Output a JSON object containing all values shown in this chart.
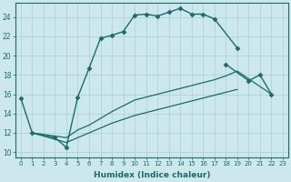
{
  "xlabel": "Humidex (Indice chaleur)",
  "bg_color": "#cde8ec",
  "grid_color": "#aacdd4",
  "line_color": "#1a6b6b",
  "xlim": [
    -0.5,
    23.5
  ],
  "ylim": [
    9.5,
    25.5
  ],
  "xticks": [
    0,
    1,
    2,
    3,
    4,
    5,
    6,
    7,
    8,
    9,
    10,
    11,
    12,
    13,
    14,
    15,
    16,
    17,
    18,
    19,
    20,
    21,
    22,
    23
  ],
  "yticks": [
    10,
    12,
    14,
    16,
    18,
    20,
    22,
    24
  ],
  "series": [
    {
      "x": [
        0,
        1,
        3,
        4,
        5,
        6,
        7,
        8,
        9,
        10,
        11,
        12,
        13,
        14,
        15,
        16,
        17,
        19
      ],
      "y": [
        15.6,
        12.0,
        11.5,
        10.5,
        15.7,
        18.7,
        21.8,
        22.1,
        22.5,
        24.2,
        24.3,
        24.1,
        24.5,
        24.9,
        24.3,
        24.3,
        23.8,
        20.8
      ],
      "style": "-",
      "marker": "D",
      "markersize": 2.5,
      "linewidth": 1.0
    },
    {
      "x": [
        18,
        20,
        21,
        22
      ],
      "y": [
        19.1,
        17.4,
        18.0,
        16.0
      ],
      "style": "-",
      "marker": "D",
      "markersize": 2.5,
      "linewidth": 1.0
    },
    {
      "x": [
        1,
        4,
        5,
        6,
        7,
        8,
        9,
        10,
        11,
        12,
        13,
        14,
        15,
        16,
        17,
        18,
        19,
        22
      ],
      "y": [
        12.0,
        11.5,
        12.3,
        12.8,
        13.5,
        14.2,
        14.8,
        15.4,
        15.7,
        16.0,
        16.3,
        16.6,
        16.9,
        17.2,
        17.5,
        17.9,
        18.4,
        16.0
      ],
      "style": "-",
      "marker": null,
      "markersize": 0,
      "linewidth": 0.9
    },
    {
      "x": [
        1,
        4,
        5,
        6,
        7,
        8,
        9,
        10,
        11,
        12,
        13,
        14,
        15,
        16,
        17,
        18,
        19
      ],
      "y": [
        12.0,
        11.0,
        11.5,
        12.0,
        12.5,
        13.0,
        13.4,
        13.8,
        14.1,
        14.4,
        14.7,
        15.0,
        15.3,
        15.6,
        15.9,
        16.2,
        16.5
      ],
      "style": "-",
      "marker": null,
      "markersize": 0,
      "linewidth": 0.9
    }
  ]
}
